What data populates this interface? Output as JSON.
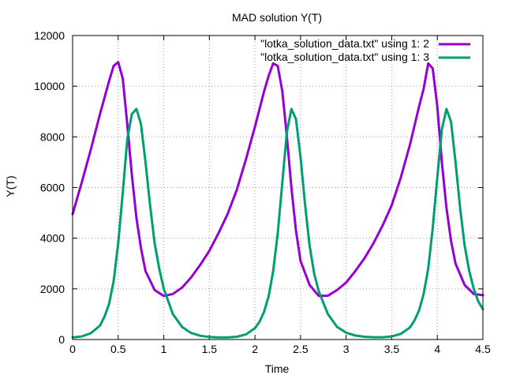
{
  "chart_data": {
    "type": "line",
    "title": "MAD solution Y(T)",
    "xlabel": "Time",
    "ylabel": "Y(T)",
    "xlim": [
      0,
      4.5
    ],
    "ylim": [
      0,
      12000
    ],
    "xticks": [
      0,
      0.5,
      1,
      1.5,
      2,
      2.5,
      3,
      3.5,
      4,
      4.5
    ],
    "xtick_labels": [
      "0",
      "0.5",
      "1",
      "1.5",
      "2",
      "2.5",
      "3",
      "3.5",
      "4",
      "4.5"
    ],
    "yticks": [
      0,
      2000,
      4000,
      6000,
      8000,
      10000,
      12000
    ],
    "ytick_labels": [
      "0",
      "2000",
      "4000",
      "6000",
      "8000",
      "10000",
      "12000"
    ],
    "grid": true,
    "legend_position": "top-right",
    "series": [
      {
        "name": "\"lotka_solution_data.txt\" using 1: 2",
        "color": "#9400d3",
        "x": [
          0,
          0.1,
          0.2,
          0.3,
          0.4,
          0.45,
          0.5,
          0.55,
          0.6,
          0.65,
          0.7,
          0.75,
          0.8,
          0.9,
          1.0,
          1.1,
          1.2,
          1.3,
          1.4,
          1.5,
          1.6,
          1.7,
          1.8,
          1.9,
          2.0,
          2.1,
          2.15,
          2.2,
          2.25,
          2.3,
          2.35,
          2.4,
          2.45,
          2.5,
          2.6,
          2.7,
          2.8,
          2.9,
          3.0,
          3.1,
          3.2,
          3.3,
          3.4,
          3.5,
          3.6,
          3.7,
          3.8,
          3.85,
          3.9,
          3.95,
          4.0,
          4.05,
          4.1,
          4.15,
          4.2,
          4.3,
          4.4,
          4.5
        ],
        "y": [
          4950,
          6200,
          7500,
          8900,
          10200,
          10800,
          10950,
          10300,
          8500,
          6500,
          4800,
          3600,
          2700,
          1950,
          1720,
          1800,
          2050,
          2450,
          2950,
          3500,
          4200,
          4950,
          5900,
          7100,
          8400,
          9800,
          10400,
          10900,
          10800,
          9800,
          8000,
          6000,
          4300,
          3100,
          2150,
          1720,
          1730,
          1950,
          2250,
          2700,
          3200,
          3800,
          4500,
          5300,
          6400,
          7700,
          9200,
          9900,
          10900,
          10700,
          9200,
          7000,
          5200,
          3900,
          3000,
          2150,
          1800,
          1750
        ]
      },
      {
        "name": "\"lotka_solution_data.txt\" using 1: 3",
        "color": "#009e73",
        "x": [
          0,
          0.1,
          0.2,
          0.3,
          0.35,
          0.4,
          0.45,
          0.5,
          0.55,
          0.6,
          0.65,
          0.7,
          0.75,
          0.8,
          0.85,
          0.9,
          0.95,
          1.0,
          1.1,
          1.2,
          1.3,
          1.4,
          1.5,
          1.6,
          1.7,
          1.8,
          1.9,
          2.0,
          2.05,
          2.1,
          2.15,
          2.2,
          2.25,
          2.3,
          2.35,
          2.4,
          2.45,
          2.5,
          2.55,
          2.6,
          2.65,
          2.7,
          2.8,
          2.9,
          3.0,
          3.1,
          3.2,
          3.3,
          3.4,
          3.5,
          3.6,
          3.7,
          3.75,
          3.8,
          3.85,
          3.9,
          3.95,
          4.0,
          4.05,
          4.1,
          4.15,
          4.2,
          4.25,
          4.3,
          4.35,
          4.4,
          4.45,
          4.5
        ],
        "y": [
          80,
          120,
          250,
          550,
          900,
          1400,
          2300,
          3800,
          5800,
          7900,
          8900,
          9100,
          8500,
          7000,
          5300,
          3800,
          2800,
          2000,
          1000,
          500,
          260,
          150,
          100,
          80,
          80,
          110,
          200,
          450,
          700,
          1100,
          1700,
          2700,
          4200,
          6200,
          8200,
          9100,
          8700,
          7200,
          5300,
          3700,
          2600,
          1900,
          1000,
          500,
          270,
          160,
          110,
          90,
          90,
          120,
          220,
          480,
          750,
          1150,
          1800,
          2800,
          4400,
          6400,
          8300,
          9100,
          8600,
          7000,
          5200,
          3700,
          2700,
          2000,
          1500,
          1200
        ]
      }
    ]
  }
}
